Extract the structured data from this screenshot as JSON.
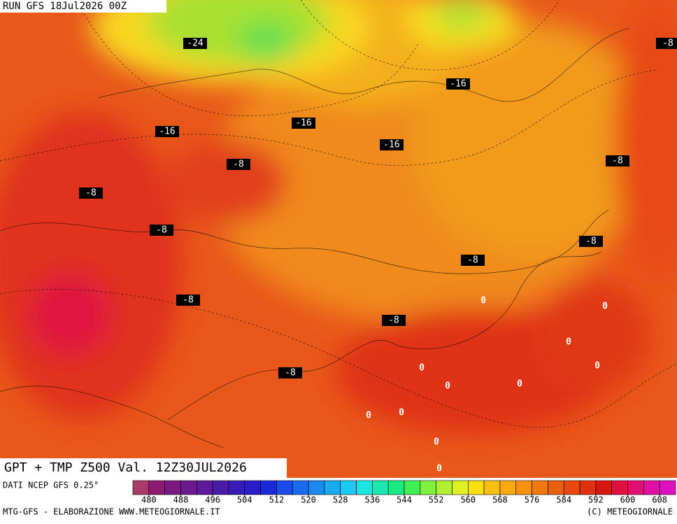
{
  "header": {
    "run": "RUN GFS 18Jul2026 00Z"
  },
  "title": "GPT + TMP Z500 Val. 12Z30JUL2026",
  "map_labels": [
    "-24",
    "-16",
    "-8",
    "-16",
    "-16",
    "-16",
    "-8",
    "-8",
    "-8",
    "-8",
    "-8",
    "-8",
    "-8",
    "0",
    "0",
    "-8",
    "0",
    "0",
    "-8",
    "0",
    "0",
    "0",
    "0",
    "0",
    "0",
    "0"
  ],
  "legend": {
    "source": "DATI NCEP GFS 0.25°",
    "range": [
      476,
      612
    ],
    "ticks": [
      480,
      488,
      496,
      504,
      512,
      520,
      528,
      536,
      544,
      552,
      560,
      568,
      576,
      584,
      592,
      600,
      608
    ],
    "colors": [
      "#a83a6a",
      "#8e1a72",
      "#7a1a80",
      "#6a1a8c",
      "#5a1a9a",
      "#4a1aa8",
      "#3a1ab8",
      "#2a1ac8",
      "#1a2ad8",
      "#1a4ae8",
      "#1a6af0",
      "#1a8af0",
      "#1aaaf0",
      "#1acaf0",
      "#1ae8e0",
      "#1ae8b0",
      "#1ae880",
      "#40f050",
      "#80f040",
      "#b0f030",
      "#e0f020",
      "#f8e010",
      "#f8c010",
      "#f8a810",
      "#f89010",
      "#f07810",
      "#e86010",
      "#e84810",
      "#e03010",
      "#d81810",
      "#e01040",
      "#e01070",
      "#e010a0",
      "#e010c0"
    ]
  },
  "footer": {
    "left": "MTG-GFS - ELABORAZIONE WWW.METEOGIORNALE.IT",
    "right": "(C) METEOGIORNALE"
  }
}
